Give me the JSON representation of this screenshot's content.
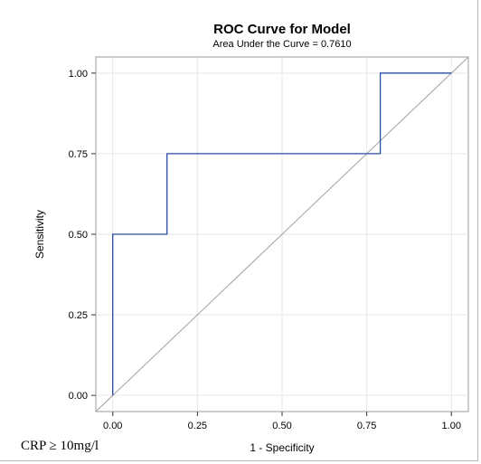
{
  "chart_data": {
    "type": "line",
    "title": "ROC Curve for Model",
    "subtitle": "Area Under the Curve = 0.7610",
    "xlabel": "1 - Specificity",
    "ylabel": "Sensitivity",
    "xlim": [
      -0.05,
      1.05
    ],
    "ylim": [
      -0.05,
      1.05
    ],
    "xticks": [
      0,
      0.25,
      0.5,
      0.75,
      1
    ],
    "yticks": [
      0,
      0.25,
      0.5,
      0.75,
      1
    ],
    "xtick_labels": [
      "0.00",
      "0.25",
      "0.50",
      "0.75",
      "1.00"
    ],
    "ytick_labels": [
      "0.00",
      "0.25",
      "0.50",
      "0.75",
      "1.00"
    ],
    "grid": true,
    "series": [
      {
        "x": [
          0,
          0,
          0.16,
          0.16,
          0.79,
          0.79,
          1
        ],
        "y": [
          0,
          0.5,
          0.5,
          0.75,
          0.75,
          1,
          1
        ],
        "color": "#2a4aa5"
      },
      {
        "x": [
          -0.05,
          1.05
        ],
        "y": [
          -0.05,
          1.05
        ],
        "color": "#a9a9a9"
      }
    ]
  },
  "caption": "CRP ≥ 10mg/l"
}
